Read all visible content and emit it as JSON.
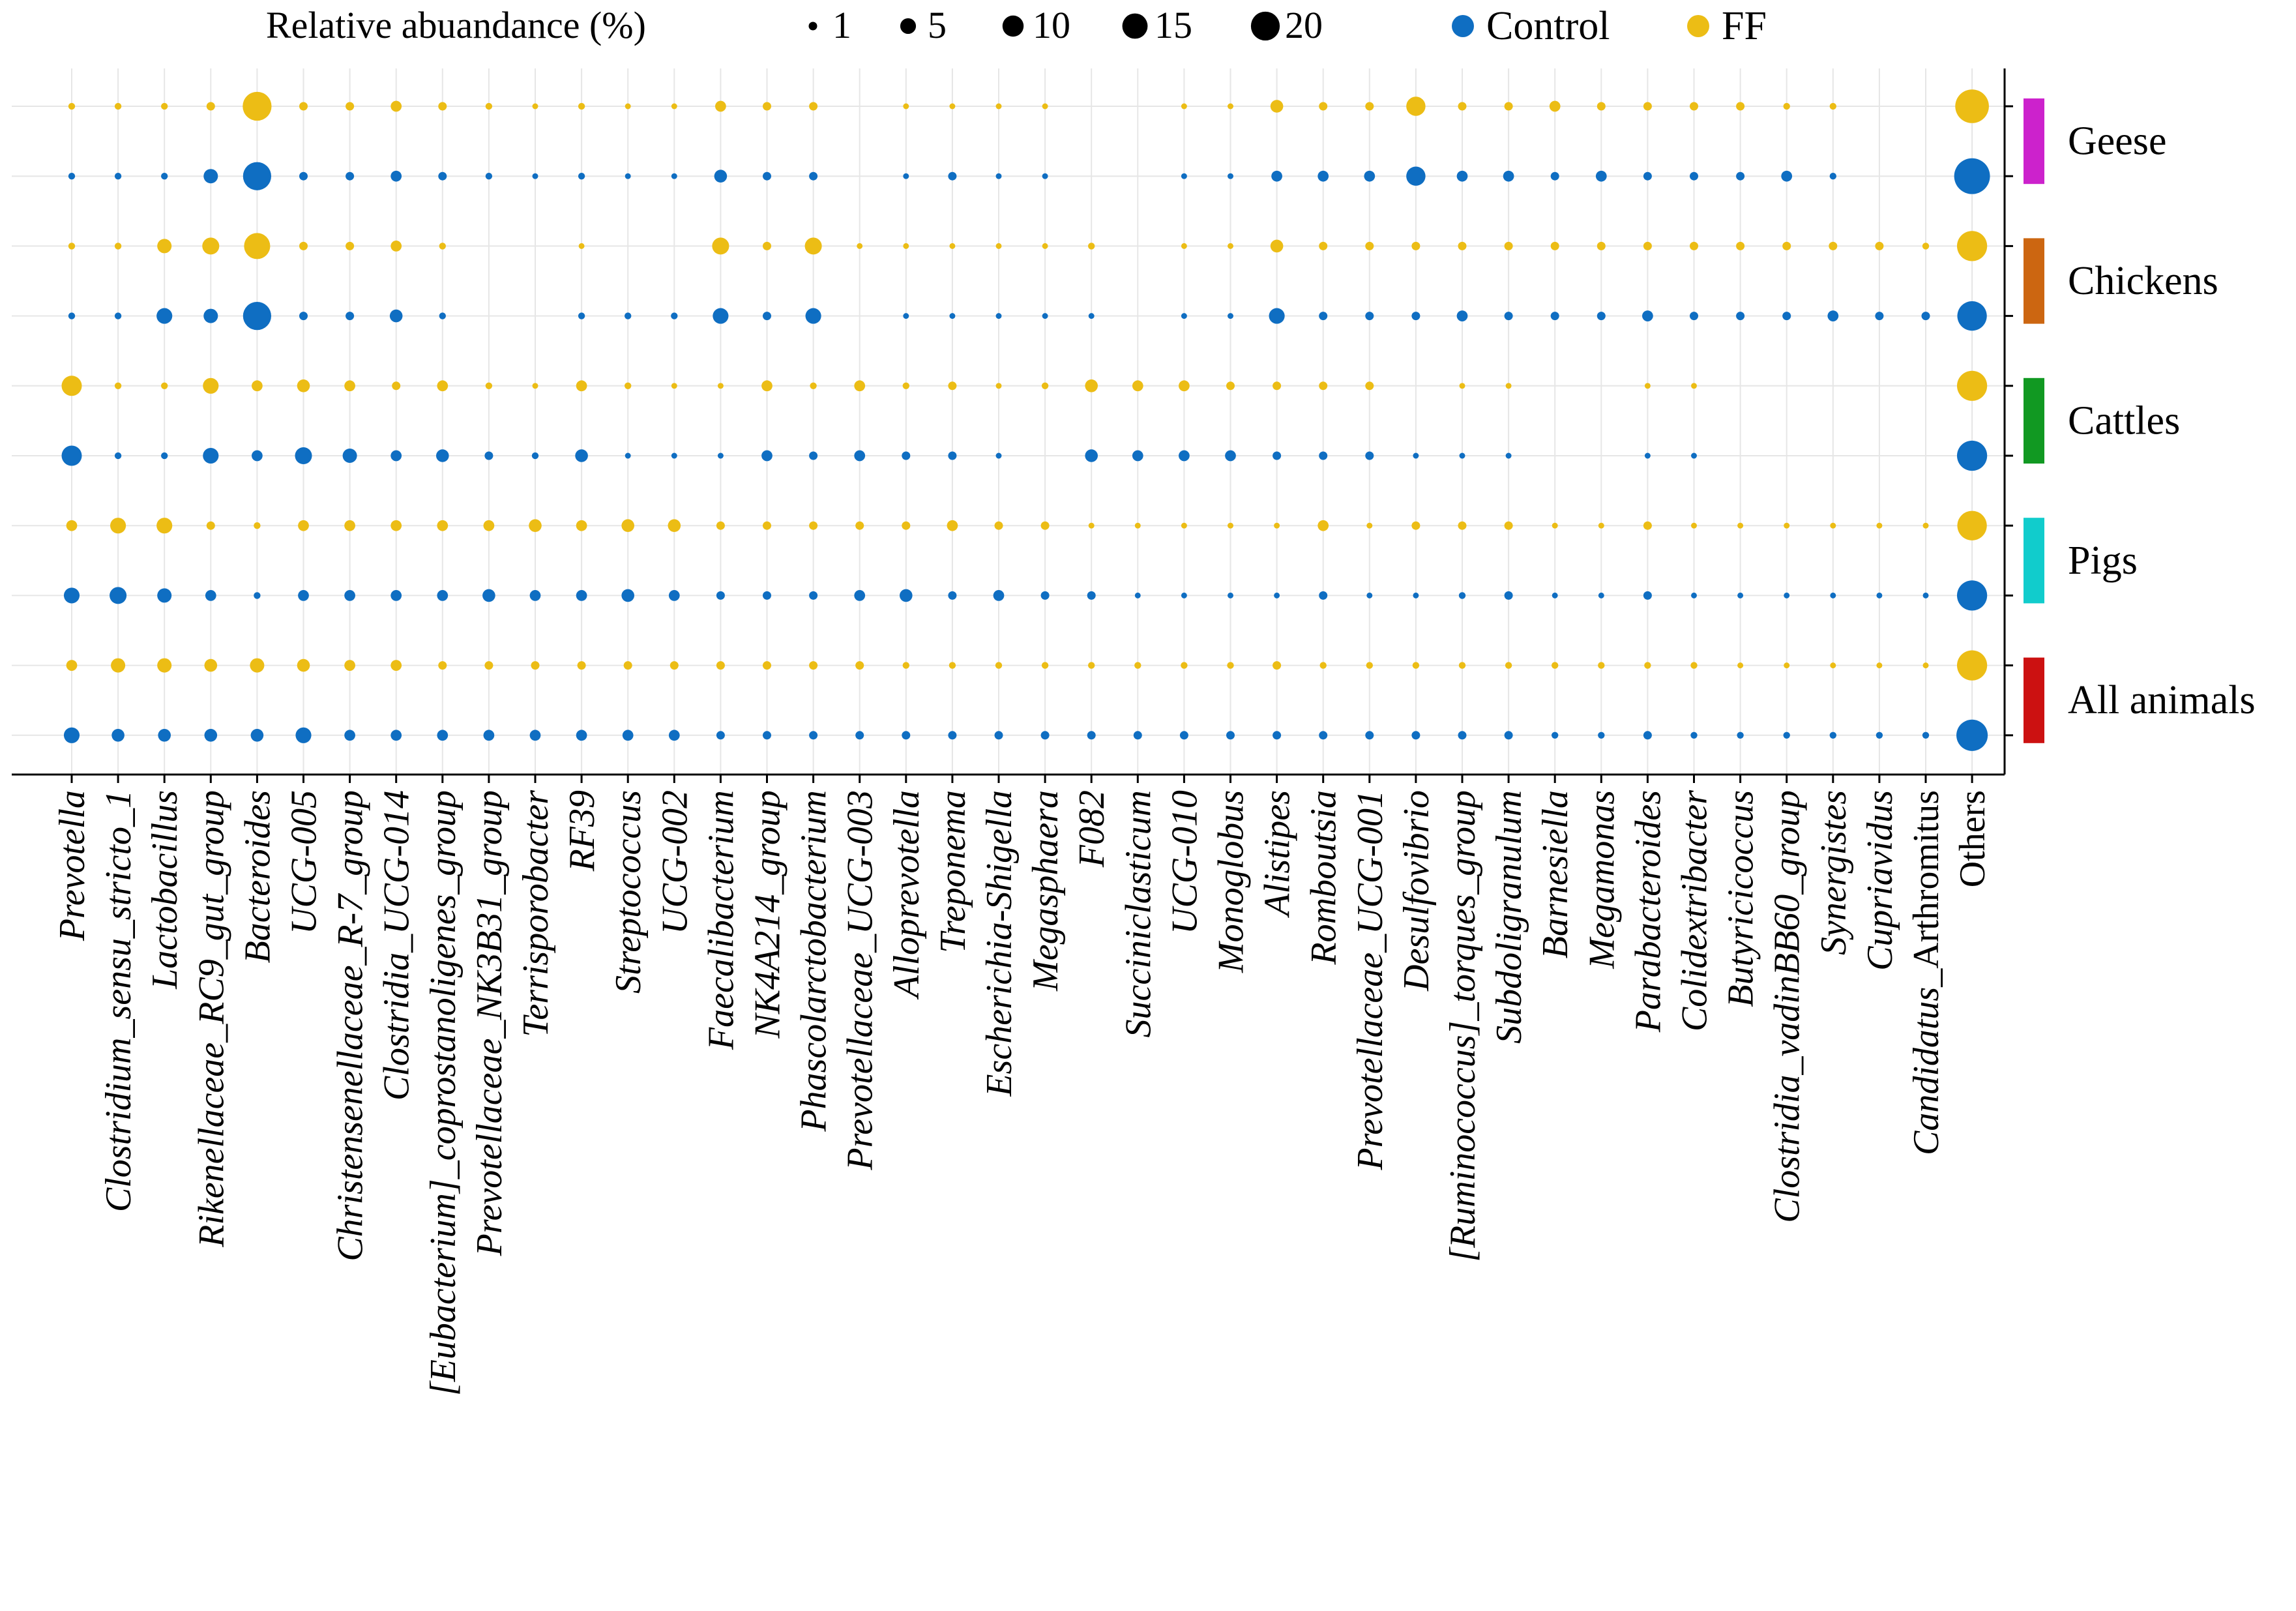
{
  "legend": {
    "size_title": "Relative abuandance (%)",
    "size_items": [
      {
        "value": 1,
        "label": "1"
      },
      {
        "value": 5,
        "label": "5"
      },
      {
        "value": 10,
        "label": "10"
      },
      {
        "value": 15,
        "label": "15"
      },
      {
        "value": 20,
        "label": "20"
      }
    ]
  },
  "chart_data": {
    "type": "bubble",
    "size_variable": "Relative abuandance (%)",
    "categories": [
      {
        "name": "Prevotella",
        "italic": true
      },
      {
        "name": "Clostridium_sensu_stricto_1",
        "italic": true
      },
      {
        "name": "Lactobacillus",
        "italic": true
      },
      {
        "name": "Rikenellaceae_RC9_gut_group",
        "italic": true
      },
      {
        "name": "Bacteroides",
        "italic": true
      },
      {
        "name": "UCG-005",
        "italic": true
      },
      {
        "name": "Christensenellaceae_R-7_group",
        "italic": true
      },
      {
        "name": "Clostridia_UCG-014",
        "italic": true
      },
      {
        "name": "[Eubacterium]_coprostanoligenes_group",
        "italic": true
      },
      {
        "name": "Prevotellaceae_NK3B31_group",
        "italic": true
      },
      {
        "name": "Terrisporobacter",
        "italic": true
      },
      {
        "name": "RF39",
        "italic": true
      },
      {
        "name": "Streptococcus",
        "italic": true
      },
      {
        "name": "UCG-002",
        "italic": true
      },
      {
        "name": "Faecalibacterium",
        "italic": true
      },
      {
        "name": "NK4A214_group",
        "italic": true
      },
      {
        "name": "Phascolarctobacterium",
        "italic": true
      },
      {
        "name": "Prevotellaceae_UCG-003",
        "italic": true
      },
      {
        "name": "Alloprevotella",
        "italic": true
      },
      {
        "name": "Treponema",
        "italic": true
      },
      {
        "name": "Escherichia-Shigella",
        "italic": true
      },
      {
        "name": "Megasphaera",
        "italic": true
      },
      {
        "name": "F082",
        "italic": true
      },
      {
        "name": "Succiniclasticum",
        "italic": true
      },
      {
        "name": "UCG-010",
        "italic": true
      },
      {
        "name": "Monoglobus",
        "italic": true
      },
      {
        "name": "Alistipes",
        "italic": true
      },
      {
        "name": "Romboutsia",
        "italic": true
      },
      {
        "name": "Prevotellaceae_UCG-001",
        "italic": true
      },
      {
        "name": "Desulfovibrio",
        "italic": true
      },
      {
        "name": "[Ruminococcus]_torques_group",
        "italic": true
      },
      {
        "name": "Subdoligranulum",
        "italic": true
      },
      {
        "name": "Barnesiella",
        "italic": true
      },
      {
        "name": "Megamonas",
        "italic": true
      },
      {
        "name": "Parabacteroides",
        "italic": true
      },
      {
        "name": "Colidextribacter",
        "italic": true
      },
      {
        "name": "Butyricicoccus",
        "italic": true
      },
      {
        "name": "Clostridia_vadinBB60_group",
        "italic": true
      },
      {
        "name": "Synergistes",
        "italic": true
      },
      {
        "name": "Cupriavidus",
        "italic": true
      },
      {
        "name": "Candidatus_Arthromitus",
        "italic": true,
        "italic_part": "Candidatus_",
        "roman_part": "Arthromitus"
      },
      {
        "name": "Others",
        "italic": false
      }
    ],
    "groups": [
      {
        "name": "Control",
        "color": "#0f6ec2"
      },
      {
        "name": "FF",
        "color": "#ecbd15"
      }
    ],
    "animals": [
      {
        "name": "Geese",
        "color": "#cc22cc"
      },
      {
        "name": "Chickens",
        "color": "#cc6611"
      },
      {
        "name": "Cattles",
        "color": "#119922"
      },
      {
        "name": "Pigs",
        "color": "#11cccc"
      },
      {
        "name": "All animals",
        "color": "#cc1111"
      }
    ],
    "rows": [
      {
        "animal": "Geese",
        "group": "FF",
        "values": [
          0.5,
          0.5,
          0.5,
          1,
          20,
          1,
          1,
          2,
          1,
          0.5,
          0.3,
          0.5,
          0.3,
          0.3,
          2,
          1,
          1,
          0,
          0.3,
          0.3,
          0.3,
          0.3,
          0,
          0,
          0.3,
          0.3,
          3,
          1,
          1,
          8,
          1,
          1,
          2,
          1,
          1,
          1,
          1,
          0.5,
          0.5,
          0,
          0,
          28
        ]
      },
      {
        "animal": "Geese",
        "group": "Control",
        "values": [
          0.5,
          0.5,
          0.5,
          4,
          19,
          1,
          1,
          2,
          1,
          0.5,
          0.3,
          0.5,
          0.3,
          0.3,
          3,
          1,
          1,
          0,
          0.3,
          1,
          0.3,
          0.3,
          0,
          0,
          0.3,
          0.3,
          2,
          2,
          2,
          8,
          2,
          2,
          1,
          2,
          1,
          1,
          1,
          2,
          0.5,
          0,
          0,
          32
        ]
      },
      {
        "animal": "Chickens",
        "group": "FF",
        "values": [
          0.5,
          0.5,
          4,
          6,
          16,
          1,
          1,
          2,
          0.5,
          0,
          0,
          0.3,
          0,
          0,
          6,
          1,
          6,
          0.3,
          0.3,
          0.3,
          0.3,
          0.3,
          0.5,
          0,
          0.3,
          0.3,
          3,
          1,
          1,
          1,
          1,
          1,
          1,
          1,
          1,
          1,
          1,
          1,
          1,
          1,
          0.5,
          22
        ]
      },
      {
        "animal": "Chickens",
        "group": "Control",
        "values": [
          0.5,
          0.5,
          5,
          4,
          19,
          1,
          1,
          3,
          0.5,
          0,
          0,
          0.5,
          0.5,
          0.5,
          5,
          1,
          5,
          0,
          0.3,
          0.3,
          0.3,
          0.3,
          0.3,
          0,
          0.3,
          0.3,
          5,
          1,
          1,
          1,
          2,
          1,
          1,
          1,
          2,
          1,
          1,
          1,
          2,
          1,
          1,
          21
        ]
      },
      {
        "animal": "Cattles",
        "group": "FF",
        "values": [
          9,
          0.5,
          0.5,
          5,
          2,
          3,
          2,
          1,
          2,
          0.5,
          0.3,
          2,
          0.5,
          0.3,
          0.3,
          2,
          0.5,
          2,
          0.5,
          1,
          0.3,
          0.5,
          3,
          2,
          2,
          1,
          1,
          1,
          1,
          0,
          0.3,
          0.3,
          0,
          0,
          0.3,
          0.3,
          0,
          0,
          0,
          0,
          0,
          22
        ]
      },
      {
        "animal": "Cattles",
        "group": "Control",
        "values": [
          9,
          0.5,
          0.5,
          5,
          2,
          6,
          4,
          2,
          3,
          1,
          0.5,
          3,
          0.3,
          0.3,
          0.3,
          2,
          1,
          2,
          1,
          1,
          0.3,
          0,
          3,
          2,
          2,
          2,
          1,
          1,
          1,
          0.3,
          0.3,
          0.3,
          0,
          0,
          0.3,
          0.3,
          0,
          0,
          0,
          0,
          0,
          22
        ]
      },
      {
        "animal": "Pigs",
        "group": "FF",
        "values": [
          2,
          5,
          5,
          1,
          0.5,
          2,
          2,
          2,
          2,
          2,
          3,
          2,
          3,
          3,
          1,
          1,
          1,
          1,
          1,
          2,
          1,
          1,
          0.3,
          0.3,
          0.3,
          0.3,
          0.3,
          2,
          0.3,
          1,
          1,
          1,
          0.3,
          0.3,
          1,
          0.3,
          0.3,
          0.3,
          0.3,
          0.3,
          0.3,
          21
        ]
      },
      {
        "animal": "Pigs",
        "group": "Control",
        "values": [
          5,
          6,
          4,
          2,
          0.5,
          2,
          2,
          2,
          2,
          3,
          2,
          2,
          3,
          2,
          1,
          1,
          1,
          2,
          3,
          1,
          2,
          1,
          1,
          0.3,
          0.3,
          0.3,
          0.3,
          1,
          0.3,
          0.3,
          0.5,
          1,
          0.3,
          0.3,
          1,
          0.3,
          0.3,
          0.3,
          0.3,
          0.3,
          0.3,
          22
        ]
      },
      {
        "animal": "All animals",
        "group": "FF",
        "values": [
          2,
          4,
          4,
          3,
          4,
          3,
          2,
          2,
          1,
          1,
          1,
          1,
          1,
          1,
          1,
          1,
          1,
          1,
          0.5,
          0.5,
          0.5,
          0.5,
          0.5,
          0.5,
          0.5,
          0.5,
          1,
          0.5,
          0.5,
          0.5,
          0.5,
          0.5,
          0.5,
          0.5,
          0.5,
          0.5,
          0.3,
          0.3,
          0.3,
          0.3,
          0.3,
          22
        ]
      },
      {
        "animal": "All animals",
        "group": "Control",
        "values": [
          5,
          3,
          3,
          3,
          3,
          5,
          2,
          2,
          2,
          2,
          2,
          2,
          2,
          2,
          1,
          1,
          1,
          1,
          1,
          1,
          1,
          1,
          1,
          1,
          1,
          1,
          1,
          1,
          1,
          1,
          1,
          1,
          0.5,
          0.5,
          1,
          0.5,
          0.5,
          0.5,
          0.5,
          0.5,
          0.5,
          24
        ]
      }
    ]
  }
}
